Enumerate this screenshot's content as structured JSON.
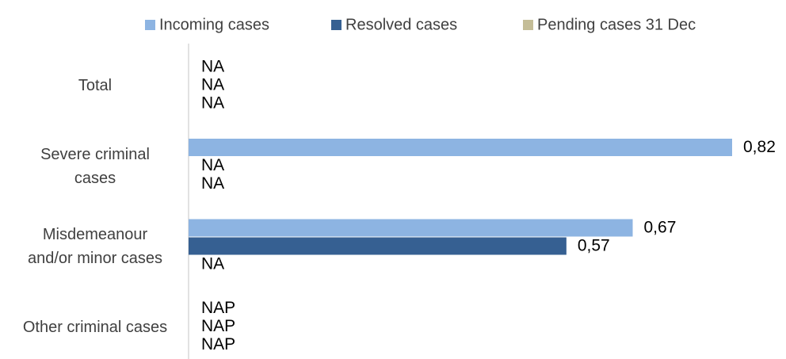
{
  "chart_data": {
    "type": "hbar",
    "categories": [
      "Total",
      "Severe criminal cases",
      "Misdemeanour and/or minor cases",
      "Other criminal cases"
    ],
    "series": [
      {
        "name": "Incoming cases",
        "color": "#8db4e2",
        "values": [
          null,
          0.82,
          0.67,
          null
        ],
        "value_labels": [
          "NA",
          "0,82",
          "0,67",
          "NAP"
        ]
      },
      {
        "name": "Resolved cases",
        "color": "#366092",
        "values": [
          null,
          null,
          0.57,
          null
        ],
        "value_labels": [
          "NA",
          "NA",
          "0,57",
          "NAP"
        ]
      },
      {
        "name": "Pending cases 31 Dec",
        "color": "#c4bd97",
        "values": [
          null,
          null,
          null,
          null
        ],
        "value_labels": [
          "NA",
          "NA",
          "NA",
          "NAP"
        ]
      }
    ],
    "legend": "top"
  }
}
